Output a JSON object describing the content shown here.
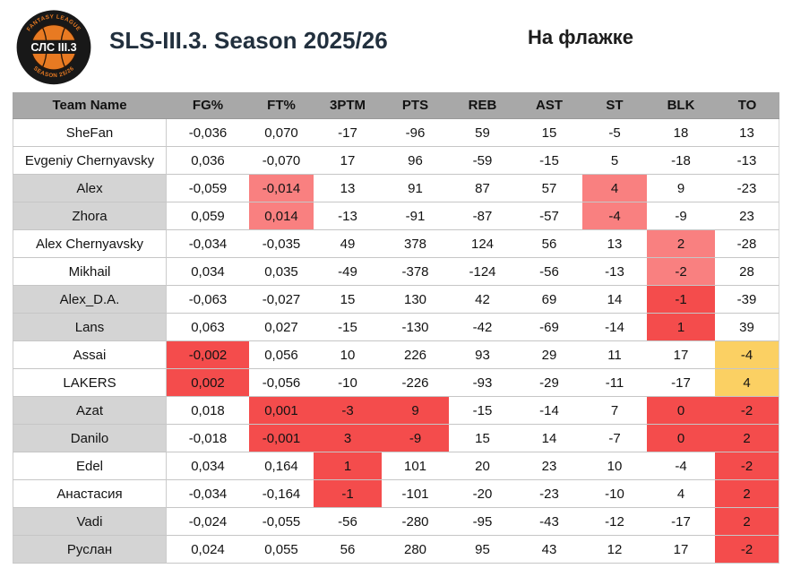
{
  "page": {
    "title": "SLS-III.3. Season 2025/26",
    "subtitle": "На флажке"
  },
  "logo": {
    "center_text": "СЛС III.3",
    "arc_top": "FANTASY LEAGUE",
    "arc_bottom": "SEASON 25/26"
  },
  "colors": {
    "header_bg": "#a8a8a8",
    "shaded_name_bg": "#d4d4d4",
    "highlight_pink": "#f98080",
    "highlight_red": "#f44c4c",
    "highlight_yellow": "#fbd063",
    "team_name_text": "#4040b0",
    "title_text": "#22303e",
    "logo_orange": "#e87a22"
  },
  "table": {
    "columns": [
      "Team Name",
      "FG%",
      "FT%",
      "3PTM",
      "PTS",
      "REB",
      "AST",
      "ST",
      "BLK",
      "TO"
    ],
    "rows": [
      {
        "name": "SheFan",
        "shaded": false,
        "cells": [
          [
            "-0,036",
            ""
          ],
          [
            "0,070",
            ""
          ],
          [
            "-17",
            ""
          ],
          [
            "-96",
            ""
          ],
          [
            "59",
            ""
          ],
          [
            "15",
            ""
          ],
          [
            "-5",
            ""
          ],
          [
            "18",
            ""
          ],
          [
            "13",
            ""
          ]
        ]
      },
      {
        "name": "Evgeniy Chernyavsky",
        "shaded": false,
        "cells": [
          [
            "0,036",
            ""
          ],
          [
            "-0,070",
            ""
          ],
          [
            "17",
            ""
          ],
          [
            "96",
            ""
          ],
          [
            "-59",
            ""
          ],
          [
            "-15",
            ""
          ],
          [
            "5",
            ""
          ],
          [
            "-18",
            ""
          ],
          [
            "-13",
            ""
          ]
        ]
      },
      {
        "name": "Alex",
        "shaded": true,
        "cells": [
          [
            "-0,059",
            ""
          ],
          [
            "-0,014",
            "pink"
          ],
          [
            "13",
            ""
          ],
          [
            "91",
            ""
          ],
          [
            "87",
            ""
          ],
          [
            "57",
            ""
          ],
          [
            "4",
            "pink"
          ],
          [
            "9",
            ""
          ],
          [
            "-23",
            ""
          ]
        ]
      },
      {
        "name": "Zhora",
        "shaded": true,
        "cells": [
          [
            "0,059",
            ""
          ],
          [
            "0,014",
            "pink"
          ],
          [
            "-13",
            ""
          ],
          [
            "-91",
            ""
          ],
          [
            "-87",
            ""
          ],
          [
            "-57",
            ""
          ],
          [
            "-4",
            "pink"
          ],
          [
            "-9",
            ""
          ],
          [
            "23",
            ""
          ]
        ]
      },
      {
        "name": "Alex Chernyavsky",
        "shaded": false,
        "cells": [
          [
            "-0,034",
            ""
          ],
          [
            "-0,035",
            ""
          ],
          [
            "49",
            ""
          ],
          [
            "378",
            ""
          ],
          [
            "124",
            ""
          ],
          [
            "56",
            ""
          ],
          [
            "13",
            ""
          ],
          [
            "2",
            "pink"
          ],
          [
            "-28",
            ""
          ]
        ]
      },
      {
        "name": "Mikhail",
        "shaded": false,
        "cells": [
          [
            "0,034",
            ""
          ],
          [
            "0,035",
            ""
          ],
          [
            "-49",
            ""
          ],
          [
            "-378",
            ""
          ],
          [
            "-124",
            ""
          ],
          [
            "-56",
            ""
          ],
          [
            "-13",
            ""
          ],
          [
            "-2",
            "pink"
          ],
          [
            "28",
            ""
          ]
        ]
      },
      {
        "name": "Alex_D.A.",
        "shaded": true,
        "cells": [
          [
            "-0,063",
            ""
          ],
          [
            "-0,027",
            ""
          ],
          [
            "15",
            ""
          ],
          [
            "130",
            ""
          ],
          [
            "42",
            ""
          ],
          [
            "69",
            ""
          ],
          [
            "14",
            ""
          ],
          [
            "-1",
            "red"
          ],
          [
            "-39",
            ""
          ]
        ]
      },
      {
        "name": "Lans",
        "shaded": true,
        "cells": [
          [
            "0,063",
            ""
          ],
          [
            "0,027",
            ""
          ],
          [
            "-15",
            ""
          ],
          [
            "-130",
            ""
          ],
          [
            "-42",
            ""
          ],
          [
            "-69",
            ""
          ],
          [
            "-14",
            ""
          ],
          [
            "1",
            "red"
          ],
          [
            "39",
            ""
          ]
        ]
      },
      {
        "name": "Assai",
        "shaded": false,
        "cells": [
          [
            "-0,002",
            "red"
          ],
          [
            "0,056",
            ""
          ],
          [
            "10",
            ""
          ],
          [
            "226",
            ""
          ],
          [
            "93",
            ""
          ],
          [
            "29",
            ""
          ],
          [
            "11",
            ""
          ],
          [
            "17",
            ""
          ],
          [
            "-4",
            "yellow"
          ]
        ]
      },
      {
        "name": "LAKERS",
        "shaded": false,
        "cells": [
          [
            "0,002",
            "red"
          ],
          [
            "-0,056",
            ""
          ],
          [
            "-10",
            ""
          ],
          [
            "-226",
            ""
          ],
          [
            "-93",
            ""
          ],
          [
            "-29",
            ""
          ],
          [
            "-11",
            ""
          ],
          [
            "-17",
            ""
          ],
          [
            "4",
            "yellow"
          ]
        ]
      },
      {
        "name": "Azat",
        "shaded": true,
        "cells": [
          [
            "0,018",
            ""
          ],
          [
            "0,001",
            "red"
          ],
          [
            "-3",
            "red"
          ],
          [
            "9",
            "red"
          ],
          [
            "-15",
            ""
          ],
          [
            "-14",
            ""
          ],
          [
            "7",
            ""
          ],
          [
            "0",
            "red"
          ],
          [
            "-2",
            "red"
          ]
        ]
      },
      {
        "name": "Danilo",
        "shaded": true,
        "cells": [
          [
            "-0,018",
            ""
          ],
          [
            "-0,001",
            "red"
          ],
          [
            "3",
            "red"
          ],
          [
            "-9",
            "red"
          ],
          [
            "15",
            ""
          ],
          [
            "14",
            ""
          ],
          [
            "-7",
            ""
          ],
          [
            "0",
            "red"
          ],
          [
            "2",
            "red"
          ]
        ]
      },
      {
        "name": "Edel",
        "shaded": false,
        "cells": [
          [
            "0,034",
            ""
          ],
          [
            "0,164",
            ""
          ],
          [
            "1",
            "red"
          ],
          [
            "101",
            ""
          ],
          [
            "20",
            ""
          ],
          [
            "23",
            ""
          ],
          [
            "10",
            ""
          ],
          [
            "-4",
            ""
          ],
          [
            "-2",
            "red"
          ]
        ]
      },
      {
        "name": "Анастасия",
        "shaded": false,
        "cells": [
          [
            "-0,034",
            ""
          ],
          [
            "-0,164",
            ""
          ],
          [
            "-1",
            "red"
          ],
          [
            "-101",
            ""
          ],
          [
            "-20",
            ""
          ],
          [
            "-23",
            ""
          ],
          [
            "-10",
            ""
          ],
          [
            "4",
            ""
          ],
          [
            "2",
            "red"
          ]
        ]
      },
      {
        "name": "Vadi",
        "shaded": true,
        "cells": [
          [
            "-0,024",
            ""
          ],
          [
            "-0,055",
            ""
          ],
          [
            "-56",
            ""
          ],
          [
            "-280",
            ""
          ],
          [
            "-95",
            ""
          ],
          [
            "-43",
            ""
          ],
          [
            "-12",
            ""
          ],
          [
            "-17",
            ""
          ],
          [
            "2",
            "red"
          ]
        ]
      },
      {
        "name": "Руслан",
        "shaded": true,
        "cells": [
          [
            "0,024",
            ""
          ],
          [
            "0,055",
            ""
          ],
          [
            "56",
            ""
          ],
          [
            "280",
            ""
          ],
          [
            "95",
            ""
          ],
          [
            "43",
            ""
          ],
          [
            "12",
            ""
          ],
          [
            "17",
            ""
          ],
          [
            "-2",
            "red"
          ]
        ]
      }
    ]
  }
}
